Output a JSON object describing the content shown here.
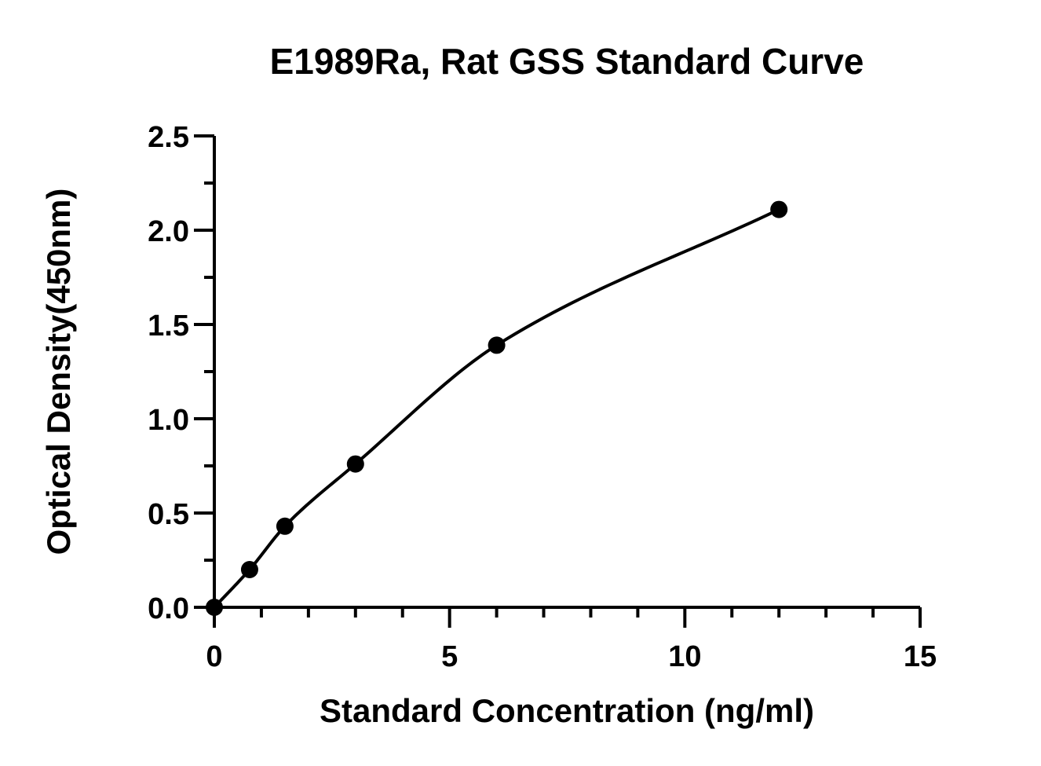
{
  "chart_data": {
    "type": "scatter",
    "title": "E1989Ra, Rat GSS Standard Curve",
    "xlabel": "Standard Concentration (ng/ml)",
    "ylabel": "Optical Density(450nm)",
    "xlim": [
      0,
      15
    ],
    "ylim": [
      0,
      2.5
    ],
    "x_ticks": [
      "0",
      "5",
      "10",
      "15"
    ],
    "y_ticks": [
      "0.0",
      "0.5",
      "1.0",
      "1.5",
      "2.0",
      "2.5"
    ],
    "grid": false,
    "legend": "none",
    "series": [
      {
        "x": [
          0,
          0.75,
          1.5,
          3,
          6,
          12
        ],
        "y": [
          0.0,
          0.2,
          0.43,
          0.76,
          1.39,
          2.11
        ],
        "fit": "smooth curve"
      }
    ],
    "colors": {
      "marks": "#000000",
      "axes": "#000000"
    }
  }
}
